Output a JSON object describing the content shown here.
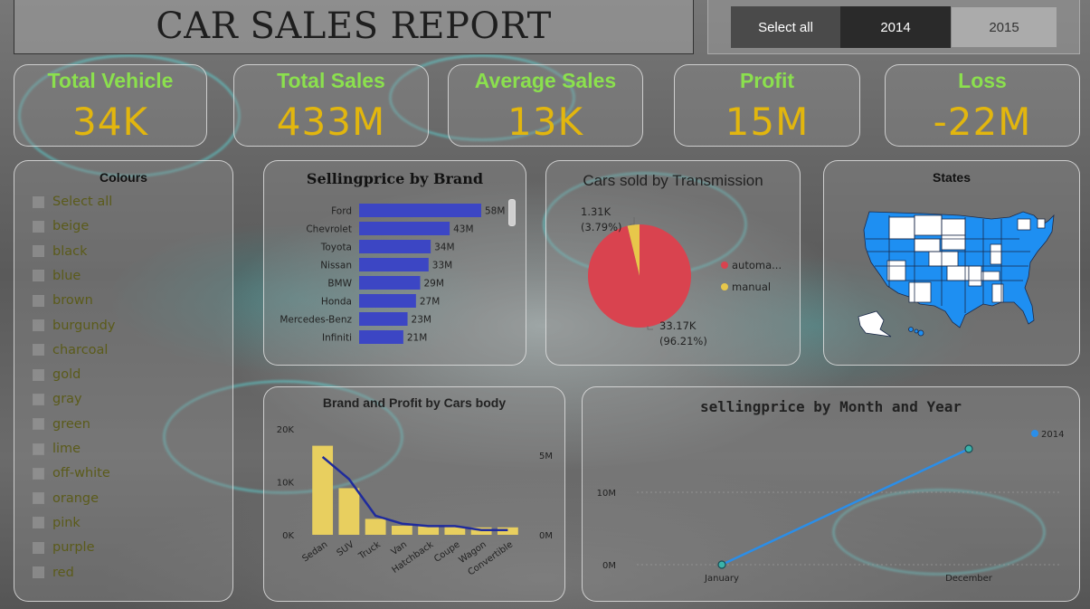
{
  "report_title": "CAR SALES REPORT",
  "year_slicer": {
    "select_all": "Select all",
    "options": [
      "2014",
      "2015"
    ],
    "selected": "2014"
  },
  "kpis": [
    {
      "label": "Total Vehicle",
      "value": "34K"
    },
    {
      "label": "Total Sales",
      "value": "433M"
    },
    {
      "label": "Average Sales",
      "value": "13K"
    },
    {
      "label": "Profit",
      "value": "15M"
    },
    {
      "label": "Loss",
      "value": "-22M"
    }
  ],
  "colours": {
    "title": "Colours",
    "items": [
      "Select all",
      "beige",
      "black",
      "blue",
      "brown",
      "burgundy",
      "charcoal",
      "gold",
      "gray",
      "green",
      "lime",
      "off-white",
      "orange",
      "pink",
      "purple",
      "red"
    ]
  },
  "colors": {
    "kpi_label": "#8be04e",
    "kpi_value": "#e2b60e",
    "brand_bar": "#3c46c4",
    "automatic": "#d9434f",
    "manual": "#e8c74a",
    "body_bar": "#e8cf5f",
    "body_line": "#1f2b9c",
    "month_line": "#2b8ee8",
    "map_state": "#1e8ff2",
    "map_state_empty": "#ffffff"
  },
  "chart_data": [
    {
      "type": "bar",
      "title": "Sellingprice by Brand",
      "orientation": "horizontal",
      "categories": [
        "Ford",
        "Chevrolet",
        "Toyota",
        "Nissan",
        "BMW",
        "Honda",
        "Mercedes-Benz",
        "Infiniti"
      ],
      "values": [
        58,
        43,
        34,
        33,
        29,
        27,
        23,
        21
      ],
      "data_labels": [
        "58M",
        "43M",
        "34M",
        "33M",
        "29M",
        "27M",
        "23M",
        "21M"
      ]
    },
    {
      "type": "pie",
      "title": "Cars sold by Transmission",
      "slices": [
        {
          "name": "automa...",
          "value": 33170,
          "label_value": "33.17K",
          "label_pct": "(96.21%)"
        },
        {
          "name": "manual",
          "value": 1310,
          "label_value": "1.31K",
          "label_pct": "(3.79%)"
        }
      ],
      "legend": "right"
    },
    {
      "type": "bar",
      "title": "Brand and Profit by Cars body",
      "categories": [
        "Sedan",
        "SUV",
        "Truck",
        "Van",
        "Hatchback",
        "Coupe",
        "Wagon",
        "Convertible"
      ],
      "bar_values": [
        16800,
        8800,
        3000,
        1700,
        1600,
        1500,
        1400,
        1400
      ],
      "line_values": [
        4900000,
        3500000,
        1200000,
        700000,
        550000,
        550000,
        300000,
        300000
      ],
      "y_left_ticks": [
        "0K",
        "10K",
        "20K"
      ],
      "y_left_range": [
        0,
        21000
      ],
      "y_right_ticks": [
        "0M",
        "5M"
      ],
      "y_right_range": [
        0,
        7000000
      ]
    },
    {
      "type": "line",
      "title": "sellingprice by Month and Year",
      "x": [
        "January",
        "December"
      ],
      "series": [
        {
          "name": "2014",
          "values": [
            0,
            16000000
          ]
        }
      ],
      "y_ticks": [
        "0M",
        "10M"
      ],
      "ylim": [
        0,
        17000000
      ],
      "legend": "top-right"
    },
    {
      "type": "map",
      "title": "States"
    }
  ]
}
